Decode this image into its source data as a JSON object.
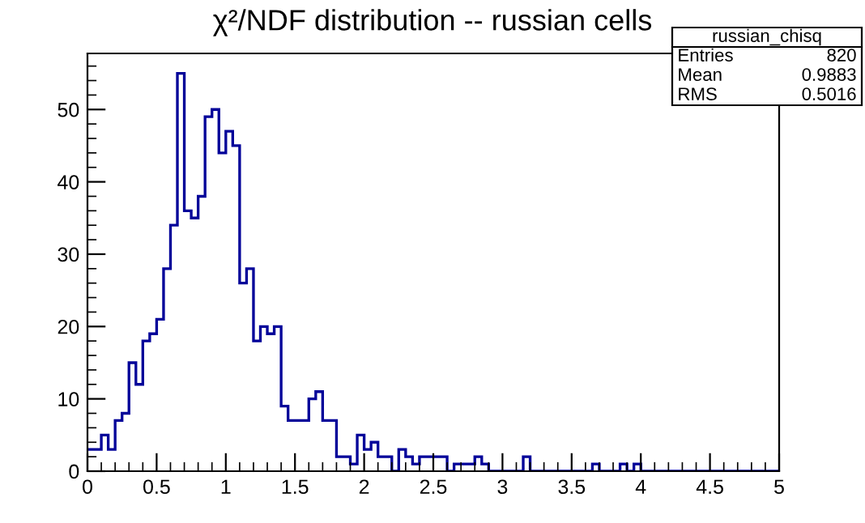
{
  "chart_data": {
    "type": "histogram",
    "title": "χ²/NDF distribution -- russian cells",
    "bins": [
      0,
      0.05,
      0.1,
      0.15,
      0.2,
      0.25,
      0.3,
      0.35,
      0.4,
      0.45,
      0.5,
      0.55,
      0.6,
      0.65,
      0.7,
      0.75,
      0.8,
      0.85,
      0.9,
      0.95,
      1,
      1.05,
      1.1,
      1.15,
      1.2,
      1.25,
      1.3,
      1.35,
      1.4,
      1.45,
      1.5,
      1.55,
      1.6,
      1.65,
      1.7,
      1.75,
      1.8,
      1.85,
      1.9,
      1.95,
      2,
      2.05,
      2.1,
      2.15,
      2.2,
      2.25,
      2.3,
      2.35,
      2.4,
      2.45,
      2.5,
      2.55,
      2.6,
      2.65,
      2.7,
      2.75,
      2.8,
      2.85,
      2.9,
      2.95,
      3,
      3.05,
      3.1,
      3.15,
      3.2,
      3.25,
      3.3,
      3.35,
      3.4,
      3.45,
      3.5,
      3.55,
      3.6,
      3.65,
      3.7,
      3.75,
      3.8,
      3.85,
      3.9,
      3.95,
      4,
      4.05,
      4.1,
      4.15,
      4.2,
      4.25,
      4.3,
      4.35,
      4.4,
      4.45,
      4.5,
      4.55,
      4.6,
      4.65,
      4.7,
      4.75,
      4.8,
      4.85,
      4.9,
      4.95,
      5
    ],
    "values": [
      3,
      3,
      5,
      3,
      7,
      8,
      15,
      12,
      18,
      19,
      21,
      28,
      34,
      55,
      36,
      35,
      38,
      49,
      50,
      44,
      47,
      45,
      26,
      28,
      18,
      20,
      19,
      20,
      9,
      7,
      7,
      7,
      10,
      11,
      7,
      7,
      2,
      2,
      1,
      5,
      3,
      4,
      2,
      2,
      0,
      3,
      2,
      1,
      2,
      2,
      2,
      2,
      0,
      1,
      1,
      1,
      2,
      1,
      0,
      0,
      0,
      0,
      0,
      2,
      0,
      0,
      0,
      0,
      0,
      0,
      0,
      0,
      0,
      1,
      0,
      0,
      0,
      1,
      0,
      1,
      0,
      0,
      0,
      0,
      0,
      0,
      0,
      0,
      0,
      0,
      0,
      0,
      0,
      0,
      0,
      0,
      0,
      0,
      0,
      0
    ],
    "color": "#000099",
    "xlim": [
      0,
      5
    ],
    "xticks": [
      0,
      0.5,
      1,
      1.5,
      2,
      2.5,
      3,
      3.5,
      4,
      4.5,
      5
    ],
    "ylim": [
      0,
      57.75
    ],
    "yticks": [
      0,
      10,
      20,
      30,
      40,
      50
    ],
    "grid": false,
    "annotations": [
      "russian_chisq",
      "Entries",
      "820",
      "Mean",
      "0.9883",
      "RMS",
      "0.5016"
    ]
  }
}
